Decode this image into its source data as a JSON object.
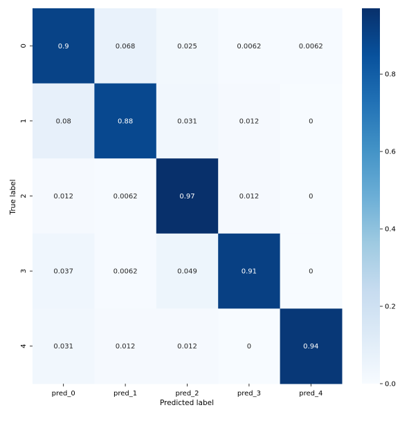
{
  "chart_data": {
    "type": "heatmap",
    "title": "",
    "xlabel": "Predicted label",
    "ylabel": "True label",
    "x_categories": [
      "pred_0",
      "pred_1",
      "pred_2",
      "pred_3",
      "pred_4"
    ],
    "y_categories": [
      "0",
      "1",
      "2",
      "3",
      "4"
    ],
    "values": [
      [
        0.9,
        0.068,
        0.025,
        0.0062,
        0.0062
      ],
      [
        0.08,
        0.88,
        0.031,
        0.012,
        0
      ],
      [
        0.012,
        0.0062,
        0.97,
        0.012,
        0
      ],
      [
        0.037,
        0.0062,
        0.049,
        0.91,
        0
      ],
      [
        0.031,
        0.012,
        0.012,
        0,
        0.94
      ]
    ],
    "cell_labels": [
      [
        "0.9",
        "0.068",
        "0.025",
        "0.0062",
        "0.0062"
      ],
      [
        "0.08",
        "0.88",
        "0.031",
        "0.012",
        "0"
      ],
      [
        "0.012",
        "0.0062",
        "0.97",
        "0.012",
        "0"
      ],
      [
        "0.037",
        "0.0062",
        "0.049",
        "0.91",
        "0"
      ],
      [
        "0.031",
        "0.012",
        "0.012",
        "0",
        "0.94"
      ]
    ],
    "colorbar": {
      "range": [
        0,
        0.97
      ],
      "ticks": [
        0.0,
        0.2,
        0.4,
        0.6,
        0.8
      ],
      "tick_labels": [
        "0.0",
        "0.2",
        "0.4",
        "0.6",
        "0.8"
      ]
    },
    "colormap": "Blues",
    "grid": false,
    "legend": "colorbar-right"
  }
}
